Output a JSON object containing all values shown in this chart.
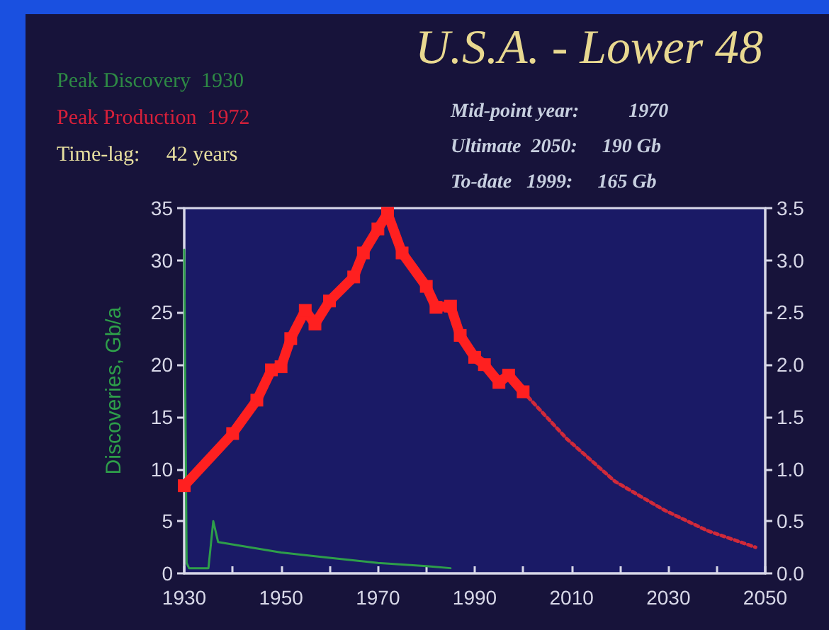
{
  "chart_data": {
    "type": "line",
    "title": "U.S.A. - Lower 48",
    "ylabel": "Discoveries, Gb/a",
    "annotations": [
      "Peak Discovery  1930",
      "Peak Production  1972",
      "Time-lag:     42 years",
      "Mid-point year:          1970",
      "Ultimate  2050:     190 Gb",
      "To-date   1999:     165 Gb"
    ],
    "xlim": [
      1930,
      2050
    ],
    "xticks": [
      1930,
      {
        "value": 1940,
        "label": null
      },
      1950,
      {
        "value": 1960,
        "label": null
      },
      1970,
      {
        "value": 1980,
        "label": null
      },
      1990,
      {
        "value": 2000,
        "label": null
      },
      2010,
      {
        "value": 2020,
        "label": null
      },
      2030,
      {
        "value": 2040,
        "label": null
      },
      2050
    ],
    "ylim": [
      0,
      35
    ],
    "yticks": [
      0,
      5,
      10,
      15,
      20,
      25,
      30,
      35
    ],
    "y2lim": [
      0,
      3.5
    ],
    "y2ticks": [
      {
        "value": 0,
        "label": "0.0"
      },
      {
        "value": 0.5,
        "label": "0.5"
      },
      {
        "value": 1,
        "label": "1.0"
      },
      {
        "value": 1.5,
        "label": "1.5"
      },
      {
        "value": 2,
        "label": "2.0"
      },
      {
        "value": 2.5,
        "label": "2.5"
      },
      {
        "value": 3,
        "label": "3.0"
      },
      {
        "value": 3.5,
        "label": "3.5"
      }
    ],
    "series": [
      {
        "color": "#2e9e4a",
        "marker": "none",
        "line_style": "solid",
        "x": [
          1930,
          1930.5,
          1931,
          1935,
          1936,
          1937,
          1950,
          1960,
          1970,
          1980,
          1985
        ],
        "values": [
          31,
          1,
          0.5,
          0.5,
          5,
          3,
          2,
          1.5,
          1,
          0.7,
          0.5
        ]
      },
      {
        "color": "#ff2020",
        "axis": "y2",
        "marker": "square",
        "line_style": "solid",
        "x": [
          1930,
          1940,
          1945,
          1948,
          1950,
          1952,
          1955,
          1957,
          1960,
          1965,
          1967,
          1970,
          1972,
          1975,
          1980,
          1982,
          1985,
          1987,
          1990,
          1992,
          1995,
          1997,
          2000
        ],
        "values": [
          0.84,
          1.34,
          1.66,
          1.95,
          1.98,
          2.25,
          2.52,
          2.39,
          2.61,
          2.84,
          3.07,
          3.3,
          3.45,
          3.07,
          2.75,
          2.55,
          2.56,
          2.28,
          2.07,
          2.0,
          1.83,
          1.9,
          1.74
        ]
      },
      {
        "color": "#d02a3a",
        "axis": "y2",
        "marker": "none",
        "line_style": "dotted",
        "x": [
          2000,
          2009,
          2019,
          2029,
          2038,
          2048
        ],
        "values": [
          1.74,
          1.29,
          0.88,
          0.61,
          0.41,
          0.25
        ]
      }
    ]
  }
}
